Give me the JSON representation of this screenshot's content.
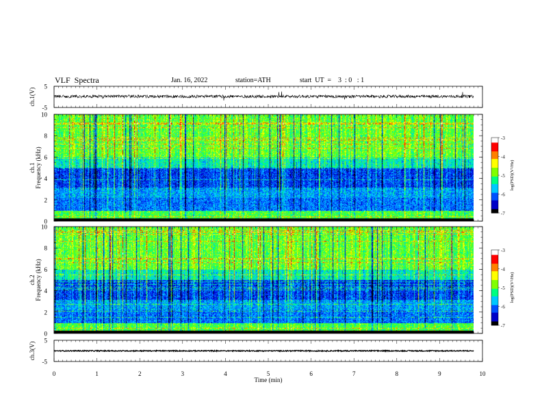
{
  "header": {
    "title": "VLF  Spectra",
    "date": "Jan. 16, 2022",
    "station": "station=ATH",
    "start_ut": "start  UT  =    3  : 0   : 1"
  },
  "chart_data": [
    {
      "type": "line",
      "panel": "ch1-waveform",
      "ylabel": "ch.1(V)",
      "yticks": [
        "5",
        "-5"
      ],
      "ylim": [
        -5,
        5
      ],
      "xlim": [
        0,
        10
      ],
      "series": [
        {
          "x_range": [
            0,
            9.8
          ],
          "approx_level": 0.2
        }
      ]
    },
    {
      "type": "heatmap",
      "panel": "ch1-spectrogram",
      "ylabel": "ch.1\nFrequency  (kHz)",
      "yticks": [
        "0",
        "2",
        "4",
        "6",
        "8",
        "10"
      ],
      "ylim": [
        0,
        10
      ],
      "xlim": [
        0,
        10
      ],
      "data_x_range": [
        0,
        9.8
      ],
      "colorbar": {
        "label": "log(PSD)(V²/Hz)",
        "ticks": [
          "-3",
          "-4",
          "-5",
          "-6",
          "-7"
        ],
        "range": [
          -7,
          -3
        ]
      }
    },
    {
      "type": "heatmap",
      "panel": "ch2-spectrogram",
      "ylabel": "ch.2\nFrequency  (kHz)",
      "yticks": [
        "0",
        "2",
        "4",
        "6",
        "8",
        "10"
      ],
      "ylim": [
        0,
        10
      ],
      "xlim": [
        0,
        10
      ],
      "data_x_range": [
        0,
        9.8
      ],
      "colorbar": {
        "label": "log(PSD)(V²/Hz)",
        "ticks": [
          "-3",
          "-4",
          "-5",
          "-6",
          "-7"
        ],
        "range": [
          -7,
          -3
        ]
      }
    },
    {
      "type": "line",
      "panel": "ch3-waveform",
      "ylabel": "ch.3(V)",
      "yticks": [
        "5",
        "-5"
      ],
      "ylim": [
        -5,
        5
      ],
      "xlim": [
        0,
        10
      ],
      "series": [
        {
          "x_range": [
            0,
            9.8
          ],
          "approx_level": 0
        }
      ]
    }
  ],
  "xaxis": {
    "label": "Time  (min)",
    "ticks": [
      "0",
      "1",
      "2",
      "3",
      "4",
      "5",
      "6",
      "7",
      "8",
      "9",
      "10"
    ]
  },
  "colors": {
    "colormap": [
      "#000000",
      "#0000c8",
      "#0050ff",
      "#00c8ff",
      "#00ff80",
      "#80ff00",
      "#ffff00",
      "#ff8000",
      "#ff0000",
      "#ffffff"
    ]
  }
}
